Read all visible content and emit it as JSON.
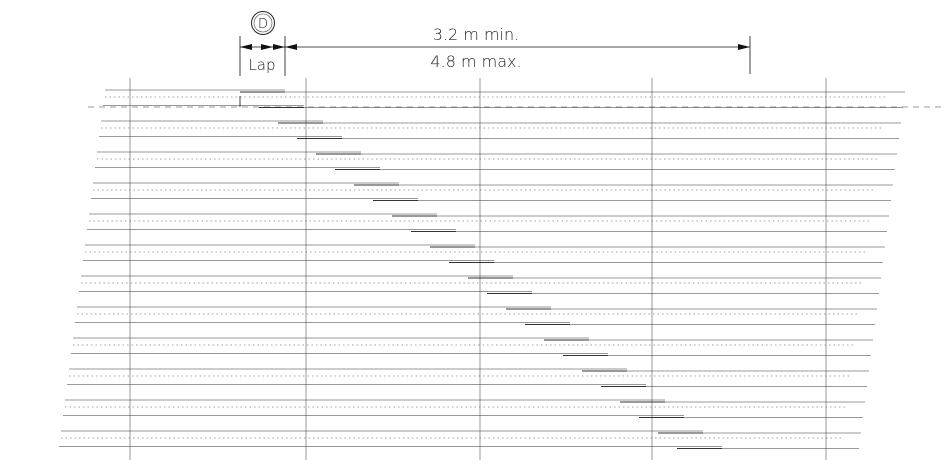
{
  "dimension": {
    "detail_symbol": "D",
    "lap_label": "Lap",
    "min_label": "3.2  m  min.",
    "max_label": "4.8  m  max."
  }
}
